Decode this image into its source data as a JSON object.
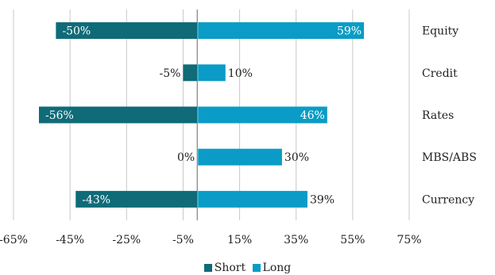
{
  "chart_data": {
    "type": "bar",
    "orientation": "horizontal",
    "categories": [
      "Equity",
      "Credit",
      "Rates",
      "MBS/ABS",
      "Currency"
    ],
    "series": [
      {
        "name": "Short",
        "values": [
          -50,
          -5,
          -56,
          0,
          -43
        ],
        "labels": [
          "-50%",
          "-5%",
          "-56%",
          "0%",
          "-43%"
        ],
        "color": "#0f6b78"
      },
      {
        "name": "Long",
        "values": [
          59,
          10,
          46,
          30,
          39
        ],
        "labels": [
          "59%",
          "10%",
          "46%",
          "30%",
          "39%"
        ],
        "color": "#0a9cc6"
      }
    ],
    "xlim": [
      -65,
      75
    ],
    "xticks": [
      -65,
      -45,
      -25,
      -5,
      15,
      35,
      55,
      75
    ],
    "xtick_labels": [
      "-65%",
      "-45%",
      "-25%",
      "-5%",
      "15%",
      "35%",
      "55%",
      "75%"
    ],
    "grid": "vertical",
    "legend_position": "bottom"
  },
  "legend": {
    "short_label": "Short",
    "long_label": "Long",
    "short_color": "#0f6b78",
    "long_color": "#0a9cc6"
  }
}
